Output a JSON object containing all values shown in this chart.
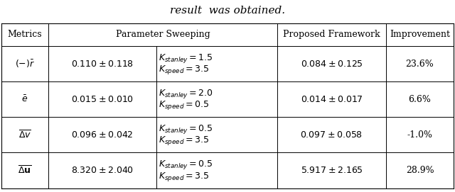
{
  "title_text": "result  was obtained.",
  "rows": [
    {
      "metric_label": "$(-)\\bar{r}$",
      "param_sweep_val": "$0.110 \\pm 0.118$",
      "param_sweep_params": [
        "$K_{stanley} = 1.5$",
        "$K_{speed} = 3.5$"
      ],
      "proposed": "$0.084 \\pm 0.125$",
      "improvement": "23.6%"
    },
    {
      "metric_label": "$\\bar{e}$",
      "param_sweep_val": "$0.015 \\pm 0.010$",
      "param_sweep_params": [
        "$K_{stanley} = 2.0$",
        "$K_{speed} = 0.5$"
      ],
      "proposed": "$0.014 \\pm 0.017$",
      "improvement": "6.6%"
    },
    {
      "metric_label": "$\\overline{\\Delta v}$",
      "param_sweep_val": "$0.096 \\pm 0.042$",
      "param_sweep_params": [
        "$K_{stanley} = 0.5$",
        "$K_{speed} = 3.5$"
      ],
      "proposed": "$0.097 \\pm 0.058$",
      "improvement": "-1.0%"
    },
    {
      "metric_label": "$\\overline{\\Delta \\mathbf{u}}$",
      "param_sweep_val": "$8.320 \\pm 2.040$",
      "param_sweep_params": [
        "$K_{stanley} = 0.5$",
        "$K_{speed} = 3.5$"
      ],
      "proposed": "$5.917 \\pm 2.165$",
      "improvement": "28.9%"
    }
  ],
  "fig_width": 6.4,
  "fig_height": 2.71,
  "bg_color": "#ffffff",
  "line_color": "#000000",
  "title_fontsize": 11,
  "font_size": 9.0
}
